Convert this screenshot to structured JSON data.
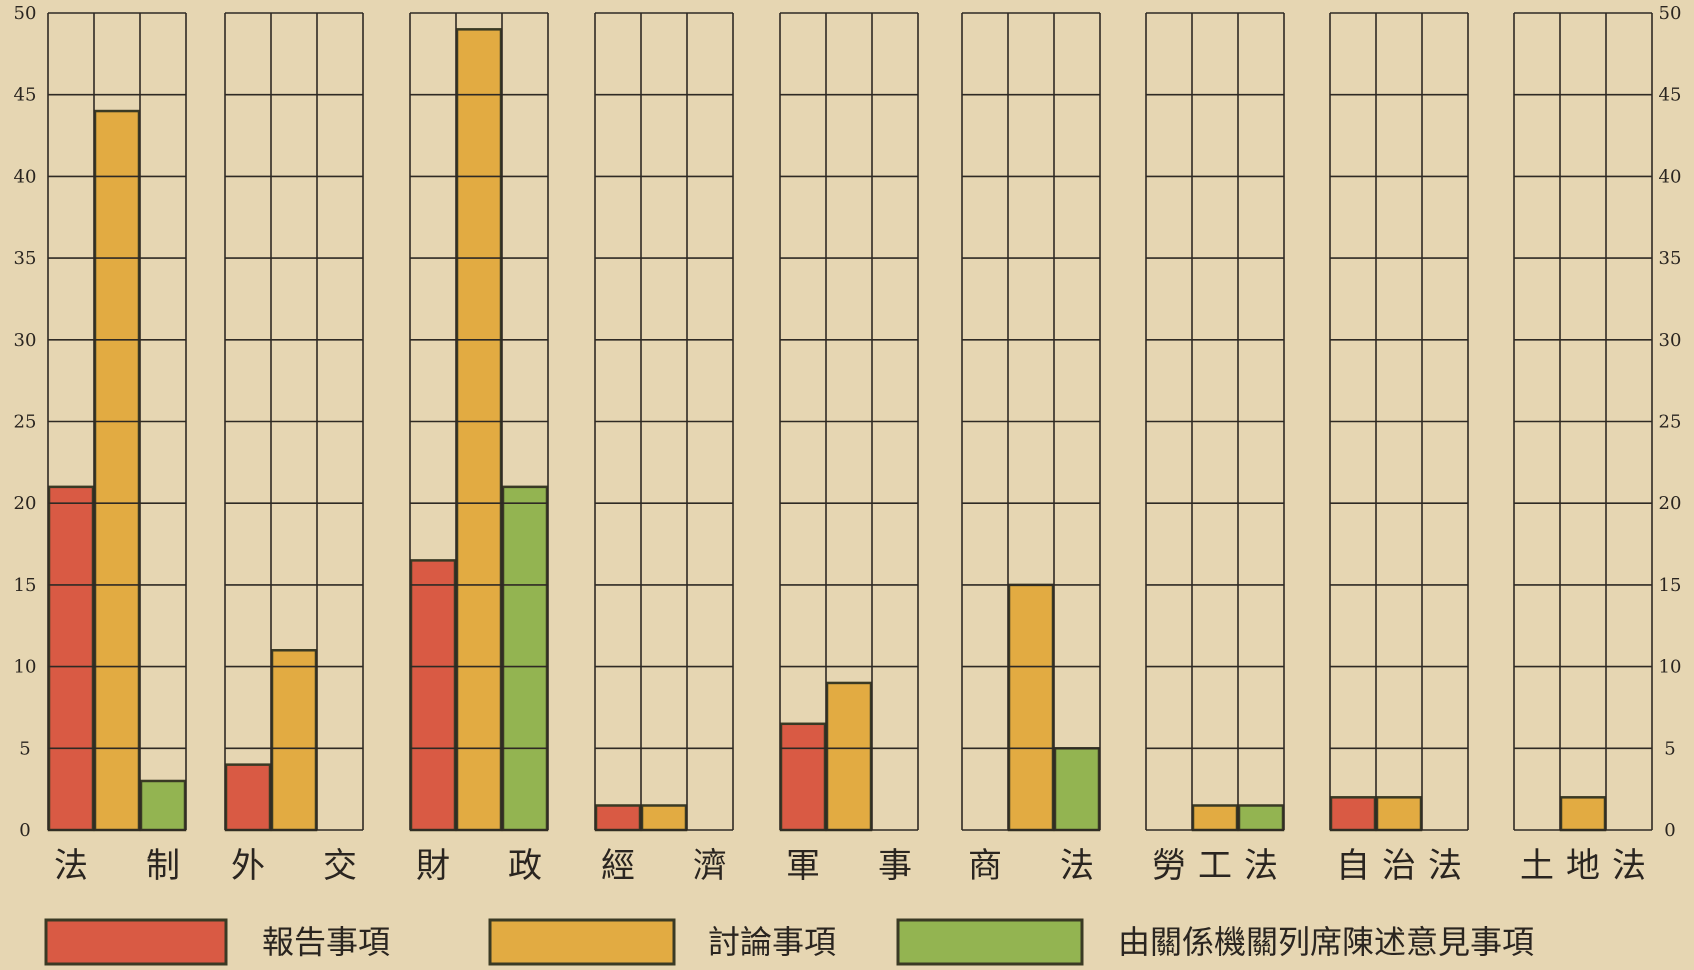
{
  "chart_data": {
    "type": "bar",
    "ylim": [
      0,
      50
    ],
    "yticks": [
      0,
      5,
      10,
      15,
      20,
      25,
      30,
      35,
      40,
      45,
      50
    ],
    "grid": true,
    "legend_position": "bottom",
    "categories": [
      {
        "chars": [
          "法",
          "制"
        ]
      },
      {
        "chars": [
          "外",
          "交"
        ]
      },
      {
        "chars": [
          "財",
          "政"
        ]
      },
      {
        "chars": [
          "經",
          "濟"
        ]
      },
      {
        "chars": [
          "軍",
          "事"
        ]
      },
      {
        "chars": [
          "商",
          "法"
        ]
      },
      {
        "chars": [
          "勞",
          "工",
          "法"
        ]
      },
      {
        "chars": [
          "自",
          "治",
          "法"
        ]
      },
      {
        "chars": [
          "土",
          "地",
          "法"
        ]
      }
    ],
    "series": [
      {
        "name": "報告事項",
        "color": "#d95a44",
        "values": [
          21,
          4,
          16.5,
          1.5,
          6.5,
          0,
          0,
          2,
          0
        ]
      },
      {
        "name": "討論事項",
        "color": "#e2ab42",
        "values": [
          44,
          11,
          49,
          1.5,
          9,
          15,
          1.5,
          2,
          2
        ]
      },
      {
        "name": "由關係機關列席陳述意見事項",
        "color": "#93b451",
        "values": [
          3,
          0,
          21,
          0,
          0,
          5,
          1.5,
          0,
          0
        ]
      }
    ]
  }
}
